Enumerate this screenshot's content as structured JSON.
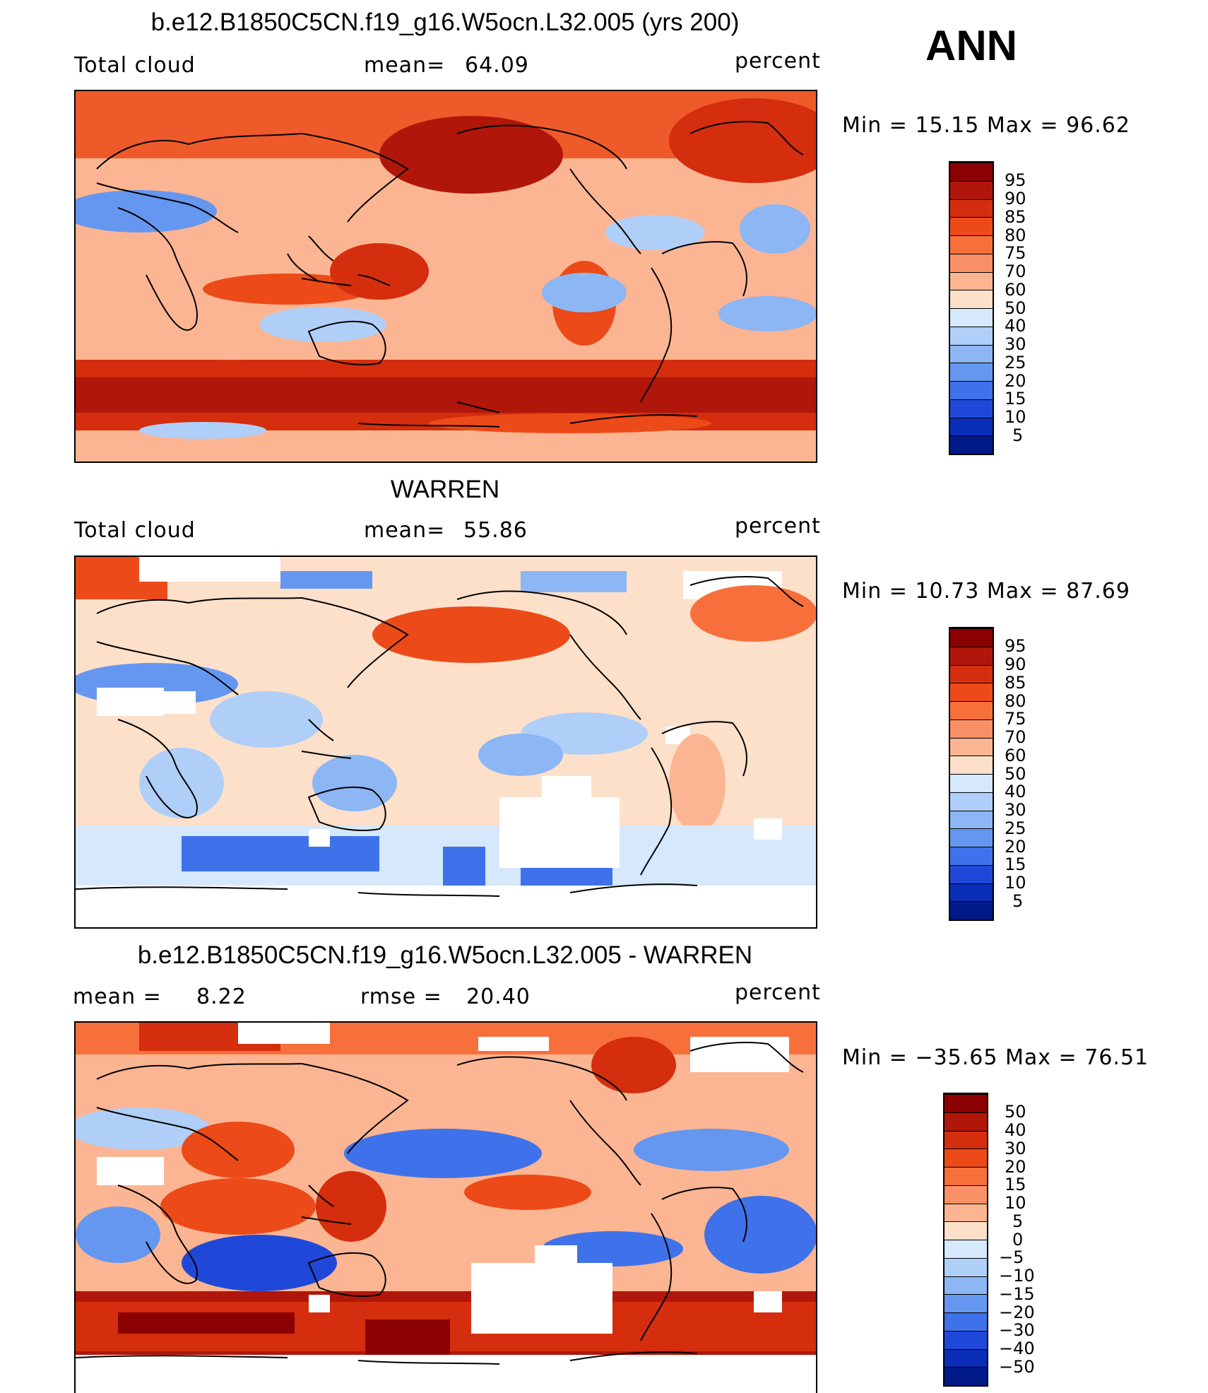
{
  "season": "ANN",
  "units": "percent",
  "panels": [
    {
      "title": "b.e12.B1850C5CN.f19_g16.W5ocn.L32.005 (yrs 200)",
      "left_label": "Total cloud",
      "mid_label": "mean=",
      "mid_value": "64.09",
      "right_label": "percent",
      "minmax": "Min =   15.15 Max =   96.62"
    },
    {
      "title": "WARREN",
      "left_label": "Total cloud",
      "mid_label": "mean=",
      "mid_value": "55.86",
      "right_label": "percent",
      "minmax": "Min =   10.73 Max =   87.69"
    },
    {
      "title": "b.e12.B1850C5CN.f19_g16.W5ocn.L32.005 - WARREN",
      "left_label": "mean =",
      "left_value": "8.22",
      "mid_label": "rmse =",
      "mid_value": "20.40",
      "right_label": "percent",
      "minmax": "Min = −35.65 Max =   76.51"
    }
  ],
  "colorbars": {
    "absolute": {
      "levels": [
        "95",
        "90",
        "85",
        "80",
        "75",
        "70",
        "60",
        "50",
        "40",
        "30",
        "25",
        "20",
        "15",
        "10",
        "5"
      ],
      "colors": [
        "#8b0000",
        "#b0170a",
        "#d42e0e",
        "#ec4a18",
        "#f7703c",
        "#fa9066",
        "#fcb592",
        "#fde0ca",
        "#d6e8fb",
        "#b0cff8",
        "#8cb6f4",
        "#6597f0",
        "#3f72ea",
        "#2048d8",
        "#0a2db8",
        "#001a88"
      ]
    },
    "difference": {
      "levels": [
        "50",
        "40",
        "30",
        "20",
        "15",
        "10",
        "5",
        "0",
        "−5",
        "−10",
        "−15",
        "−20",
        "−30",
        "−40",
        "−50"
      ],
      "colors": [
        "#8b0000",
        "#b0170a",
        "#d42e0e",
        "#ec4a18",
        "#f7703c",
        "#fa9066",
        "#fcb592",
        "#fde0ca",
        "#d6e8fb",
        "#b0cff8",
        "#8cb6f4",
        "#6597f0",
        "#3f72ea",
        "#2048d8",
        "#0a2db8",
        "#001a88"
      ]
    }
  }
}
